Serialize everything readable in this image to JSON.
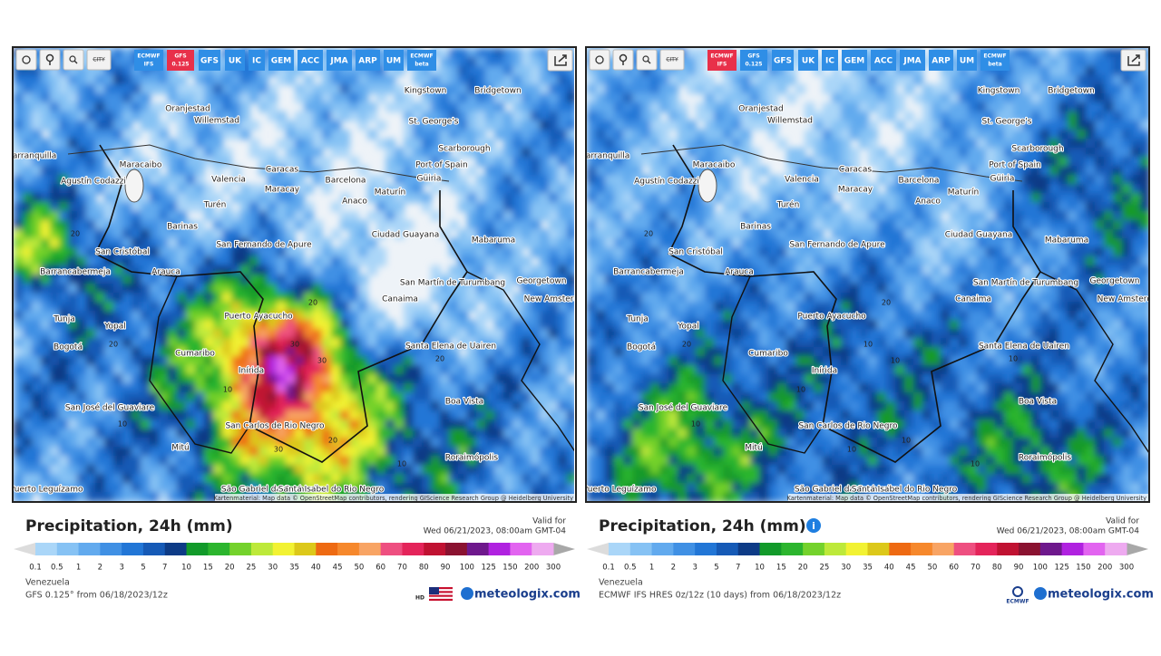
{
  "panels": [
    {
      "buttons": [
        {
          "label": "ECMWF",
          "sub": "IFS",
          "active": false
        },
        {
          "label": "GFS",
          "sub": "0.125",
          "active": true
        },
        {
          "label": "GFS",
          "active": false
        },
        {
          "label": "UK",
          "active": false
        },
        {
          "label": "IC",
          "active": false
        },
        {
          "label": "GEM",
          "active": false
        },
        {
          "label": "ACC",
          "active": false
        },
        {
          "label": "JMA",
          "active": false
        },
        {
          "label": "ARP",
          "active": false
        },
        {
          "label": "UM",
          "active": false
        },
        {
          "label": "ECMWF",
          "sub": "beta",
          "active": false
        }
      ],
      "city_button": "CITY",
      "title": "Precipitation, 24h (mm)",
      "valid_label": "Valid for",
      "valid_time": "Wed 06/21/2023, 08:00am GMT-04",
      "region": "Venezuela",
      "model_run": "GFS 0.125° from 06/18/2023/12z",
      "badge": "HD",
      "contour_labels": [
        "20",
        "20",
        "30",
        "30",
        "20",
        "10",
        "10",
        "20",
        "10",
        "30",
        "20"
      ]
    },
    {
      "buttons": [
        {
          "label": "ECMWF",
          "sub": "IFS",
          "active": true
        },
        {
          "label": "GFS",
          "sub": "0.125",
          "active": false
        },
        {
          "label": "GFS",
          "active": false
        },
        {
          "label": "UK",
          "active": false
        },
        {
          "label": "IC",
          "active": false
        },
        {
          "label": "GEM",
          "active": false
        },
        {
          "label": "ACC",
          "active": false
        },
        {
          "label": "JMA",
          "active": false
        },
        {
          "label": "ARP",
          "active": false
        },
        {
          "label": "UM",
          "active": false
        },
        {
          "label": "ECMWF",
          "sub": "beta",
          "active": false
        }
      ],
      "city_button": "CITY",
      "title": "Precipitation, 24h (mm)",
      "valid_label": "Valid for",
      "valid_time": "Wed 06/21/2023, 08:00am GMT-04",
      "region": "Venezuela",
      "model_run": "ECMWF IFS HRES 0z/12z (10 days) from 06/18/2023/12z",
      "badge": "ECMWF",
      "contour_labels": [
        "20",
        "20",
        "10",
        "10",
        "10",
        "10",
        "10",
        "20",
        "10",
        "10",
        "10"
      ]
    }
  ],
  "map": {
    "cities": [
      "Oranjestad",
      "Willemstad",
      "Kingstown",
      "Bridgetown",
      "St. George's",
      "Scarborough",
      "Port of Spain",
      "Barranquilla",
      "Maracaibo",
      "Caracas",
      "Valencia",
      "Maracay",
      "Barcelona",
      "Güiria",
      "Agustín Codazzi",
      "Maturín",
      "Anaco",
      "Turén",
      "Barinas",
      "Ciudad Guayana",
      "Mabaruma",
      "San Cristóbal",
      "San Fernando de Apure",
      "Arauca",
      "Barrancabermeja",
      "San Martín de Turumbang",
      "Georgetown",
      "New Amsterdam",
      "Canaima",
      "Tunja",
      "Yopal",
      "Puerto Ayacucho",
      "Santa Elena de Uairen",
      "Bogotá",
      "Cumaribo",
      "Inírida",
      "Boa Vista",
      "San José del Guaviare",
      "San Carlos de Rio Negro",
      "Mitú",
      "Roraimópolis",
      "São Gabriel da Cachoeira",
      "Santa Isabel do Rio Negro",
      "Puerto Leguízamo"
    ],
    "attribution": "Kartenmaterial: Map data © OpenStreetMap contributors, rendering GIScience Research Group @ Heidelberg University"
  },
  "legend": {
    "ticks": [
      0.1,
      0.5,
      1,
      2,
      3,
      5,
      7,
      10,
      15,
      20,
      25,
      30,
      35,
      40,
      45,
      50,
      60,
      70,
      80,
      90,
      100,
      125,
      150,
      200,
      300
    ],
    "colors": [
      "#aad6f8",
      "#86c2f4",
      "#62aaee",
      "#4090e4",
      "#2276d6",
      "#165ab6",
      "#0d3b86",
      "#129a2a",
      "#2cb52e",
      "#74d22c",
      "#bde93a",
      "#f2f233",
      "#dcc81a",
      "#ee6a12",
      "#f6882c",
      "#f8a464",
      "#ee4f80",
      "#e4245a",
      "#c01232",
      "#8a1230",
      "#6e188c",
      "#b022e0",
      "#e264f0",
      "#eeaaf0"
    ],
    "under_color": "#dcdcdc",
    "over_color": "#a8a8a8"
  },
  "brand": "meteologix.com"
}
